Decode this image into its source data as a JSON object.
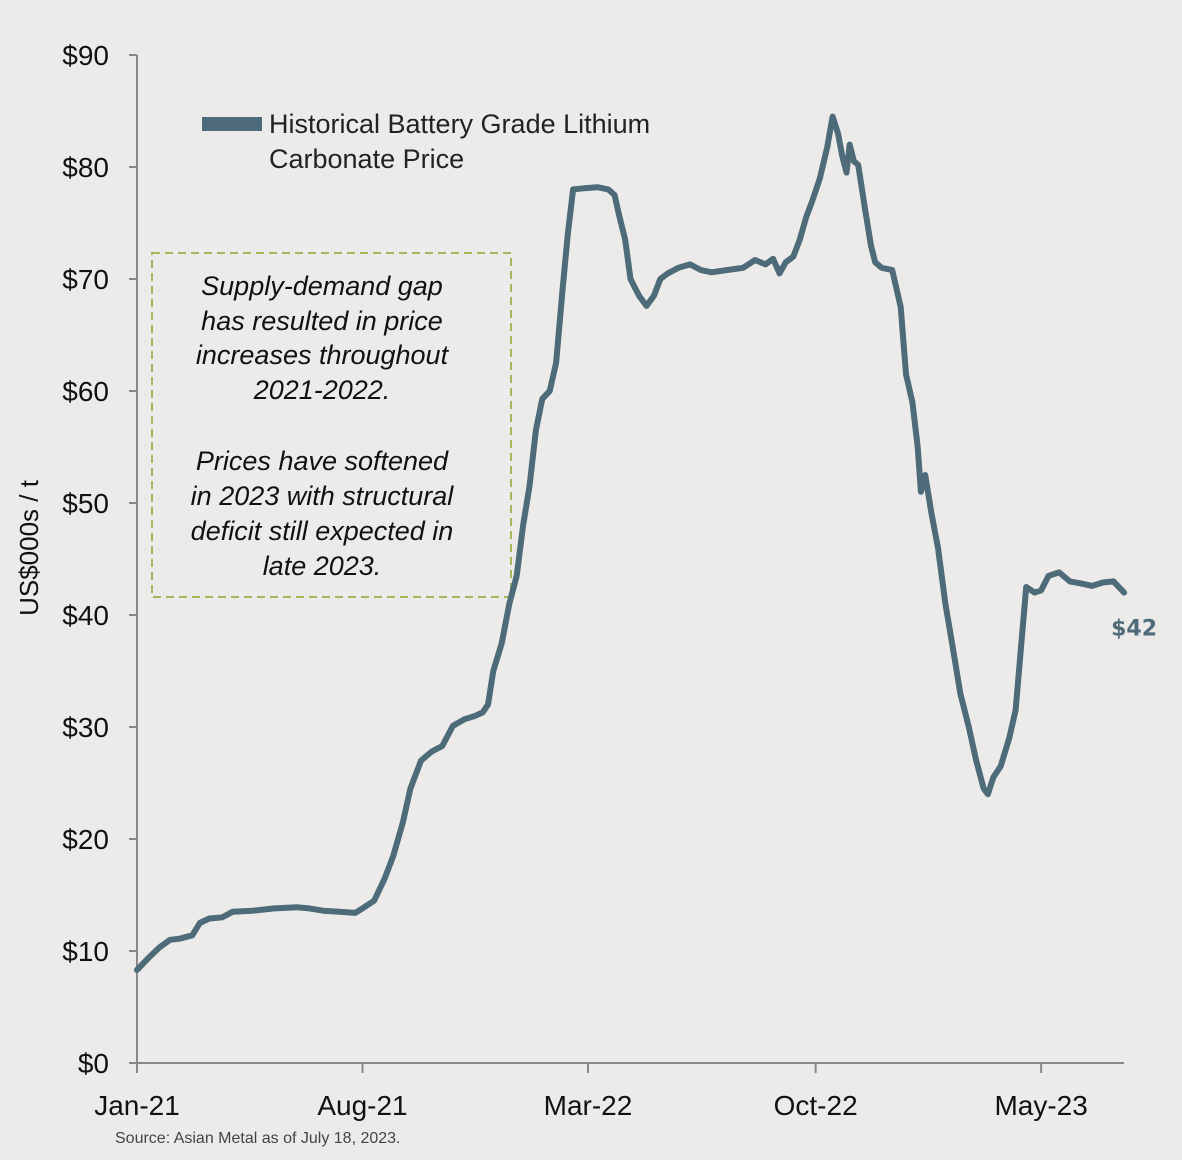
{
  "chart_data": {
    "type": "line",
    "ylabel": "US$000s / t",
    "ylim": [
      0,
      90
    ],
    "yticks": [
      0,
      10,
      20,
      30,
      40,
      50,
      60,
      70,
      80,
      90
    ],
    "ytick_labels": [
      "$0",
      "$10",
      "$20",
      "$30",
      "$40",
      "$50",
      "$60",
      "$70",
      "$80",
      "$90"
    ],
    "xlim": [
      "2021-01-01",
      "2023-07-18"
    ],
    "xticks": [
      "2021-01-01",
      "2021-08-01",
      "2022-03-01",
      "2022-10-01",
      "2023-05-01"
    ],
    "xtick_labels": [
      "Jan-21",
      "Aug-21",
      "Mar-22",
      "Oct-22",
      "May-23"
    ],
    "grid": false,
    "legend": "top-left",
    "series": [
      {
        "name": "Historical Battery Grade Lithium Carbonate Price",
        "color": "#4d6b78",
        "points": [
          [
            "2021-01-01",
            8.3
          ],
          [
            "2021-01-12",
            9.4
          ],
          [
            "2021-01-22",
            10.3
          ],
          [
            "2021-02-01",
            11.0
          ],
          [
            "2021-02-10",
            11.1
          ],
          [
            "2021-02-22",
            11.4
          ],
          [
            "2021-03-01",
            12.5
          ],
          [
            "2021-03-10",
            12.9
          ],
          [
            "2021-03-22",
            13.0
          ],
          [
            "2021-04-01",
            13.5
          ],
          [
            "2021-04-20",
            13.6
          ],
          [
            "2021-05-10",
            13.8
          ],
          [
            "2021-06-01",
            13.9
          ],
          [
            "2021-06-12",
            13.8
          ],
          [
            "2021-06-25",
            13.6
          ],
          [
            "2021-07-10",
            13.5
          ],
          [
            "2021-07-25",
            13.4
          ],
          [
            "2021-08-01",
            13.8
          ],
          [
            "2021-08-12",
            14.5
          ],
          [
            "2021-08-22",
            16.5
          ],
          [
            "2021-08-30",
            18.5
          ],
          [
            "2021-09-08",
            21.5
          ],
          [
            "2021-09-15",
            24.5
          ],
          [
            "2021-09-25",
            27.0
          ],
          [
            "2021-10-05",
            27.8
          ],
          [
            "2021-10-15",
            28.3
          ],
          [
            "2021-10-25",
            30.1
          ],
          [
            "2021-11-05",
            30.7
          ],
          [
            "2021-11-15",
            31.0
          ],
          [
            "2021-11-22",
            31.3
          ],
          [
            "2021-11-27",
            32.0
          ],
          [
            "2021-12-02",
            35.0
          ],
          [
            "2021-12-10",
            37.5
          ],
          [
            "2021-12-17",
            41.0
          ],
          [
            "2021-12-24",
            43.5
          ],
          [
            "2021-12-30",
            48.0
          ],
          [
            "2022-01-05",
            51.5
          ],
          [
            "2022-01-11",
            56.5
          ],
          [
            "2022-01-17",
            59.3
          ],
          [
            "2022-01-24",
            60.0
          ],
          [
            "2022-01-30",
            62.5
          ],
          [
            "2022-02-05",
            69.0
          ],
          [
            "2022-02-10",
            74.0
          ],
          [
            "2022-02-15",
            78.0
          ],
          [
            "2022-02-25",
            78.1
          ],
          [
            "2022-03-10",
            78.2
          ],
          [
            "2022-03-20",
            78.0
          ],
          [
            "2022-03-26",
            77.5
          ],
          [
            "2022-03-30",
            75.8
          ],
          [
            "2022-04-05",
            73.5
          ],
          [
            "2022-04-10",
            70.0
          ],
          [
            "2022-04-18",
            68.5
          ],
          [
            "2022-04-25",
            67.6
          ],
          [
            "2022-05-02",
            68.5
          ],
          [
            "2022-05-08",
            70.0
          ],
          [
            "2022-05-15",
            70.5
          ],
          [
            "2022-05-25",
            71.0
          ],
          [
            "2022-06-05",
            71.3
          ],
          [
            "2022-06-15",
            70.8
          ],
          [
            "2022-06-25",
            70.6
          ],
          [
            "2022-07-10",
            70.8
          ],
          [
            "2022-07-25",
            71.0
          ],
          [
            "2022-08-05",
            71.7
          ],
          [
            "2022-08-15",
            71.3
          ],
          [
            "2022-08-22",
            71.8
          ],
          [
            "2022-08-28",
            70.5
          ],
          [
            "2022-09-03",
            71.5
          ],
          [
            "2022-09-10",
            72.0
          ],
          [
            "2022-09-16",
            73.5
          ],
          [
            "2022-09-22",
            75.5
          ],
          [
            "2022-09-28",
            77.0
          ],
          [
            "2022-10-05",
            79.0
          ],
          [
            "2022-10-12",
            81.8
          ],
          [
            "2022-10-17",
            84.5
          ],
          [
            "2022-10-22",
            83.0
          ],
          [
            "2022-10-26",
            81.0
          ],
          [
            "2022-10-30",
            79.5
          ],
          [
            "2022-11-02",
            82.0
          ],
          [
            "2022-11-06",
            80.5
          ],
          [
            "2022-11-10",
            80.2
          ],
          [
            "2022-11-16",
            76.5
          ],
          [
            "2022-11-22",
            73.0
          ],
          [
            "2022-11-26",
            71.5
          ],
          [
            "2022-12-02",
            71.0
          ],
          [
            "2022-12-12",
            70.8
          ],
          [
            "2022-12-20",
            67.5
          ],
          [
            "2022-12-25",
            61.5
          ],
          [
            "2022-12-31",
            59.0
          ],
          [
            "2023-01-05",
            55.0
          ],
          [
            "2023-01-08",
            51.0
          ],
          [
            "2023-01-12",
            52.5
          ],
          [
            "2023-01-18",
            49.0
          ],
          [
            "2023-01-24",
            46.0
          ],
          [
            "2023-01-31",
            41.0
          ],
          [
            "2023-02-08",
            36.5
          ],
          [
            "2023-02-14",
            33.0
          ],
          [
            "2023-02-22",
            30.0
          ],
          [
            "2023-03-01",
            27.0
          ],
          [
            "2023-03-08",
            24.5
          ],
          [
            "2023-03-12",
            24.0
          ],
          [
            "2023-03-17",
            25.5
          ],
          [
            "2023-03-24",
            26.5
          ],
          [
            "2023-04-01",
            29.0
          ],
          [
            "2023-04-07",
            31.5
          ],
          [
            "2023-04-12",
            37.0
          ],
          [
            "2023-04-17",
            42.5
          ],
          [
            "2023-04-25",
            42.0
          ],
          [
            "2023-05-01",
            42.2
          ],
          [
            "2023-05-08",
            43.5
          ],
          [
            "2023-05-18",
            43.8
          ],
          [
            "2023-05-28",
            43.0
          ],
          [
            "2023-06-08",
            42.8
          ],
          [
            "2023-06-18",
            42.6
          ],
          [
            "2023-06-28",
            42.9
          ],
          [
            "2023-07-08",
            43.0
          ],
          [
            "2023-07-18",
            42.0
          ]
        ]
      }
    ],
    "end_label": "$42",
    "annotation": {
      "lines": [
        "Supply-demand gap",
        "has resulted in price",
        "increases throughout",
        "2021-2022.",
        "",
        "Prices have softened",
        "in 2023 with structural",
        "deficit still expected in",
        "late 2023."
      ],
      "border_color": "#a7b65c"
    },
    "legend_lines": [
      "Historical Battery Grade Lithium",
      "Carbonate Price"
    ],
    "source": "Source: Asian Metal as of July 18, 2023."
  }
}
